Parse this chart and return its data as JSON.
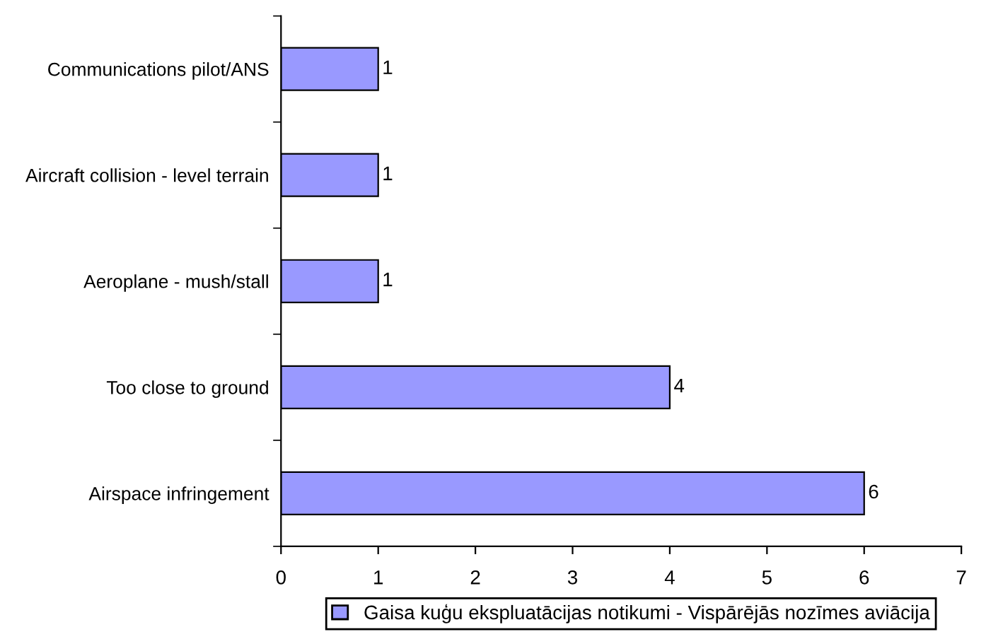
{
  "chart_data": {
    "type": "bar",
    "orientation": "horizontal",
    "categories": [
      "Communications pilot/ANS",
      "Aircraft collision - level terrain",
      "Aeroplane - mush/stall",
      "Too close to ground",
      "Airspace infringement"
    ],
    "series": [
      {
        "name": "Gaisa kuģu ekspluatācijas notikumi - Vispārējās nozīmes aviācija",
        "color": "#9999ff",
        "values": [
          1,
          1,
          1,
          4,
          6
        ]
      }
    ],
    "xlim": [
      0,
      7
    ],
    "xticks": [
      0,
      1,
      2,
      3,
      4,
      5,
      6,
      7
    ],
    "data_labels": true,
    "grid": false,
    "legend": "bottom"
  }
}
